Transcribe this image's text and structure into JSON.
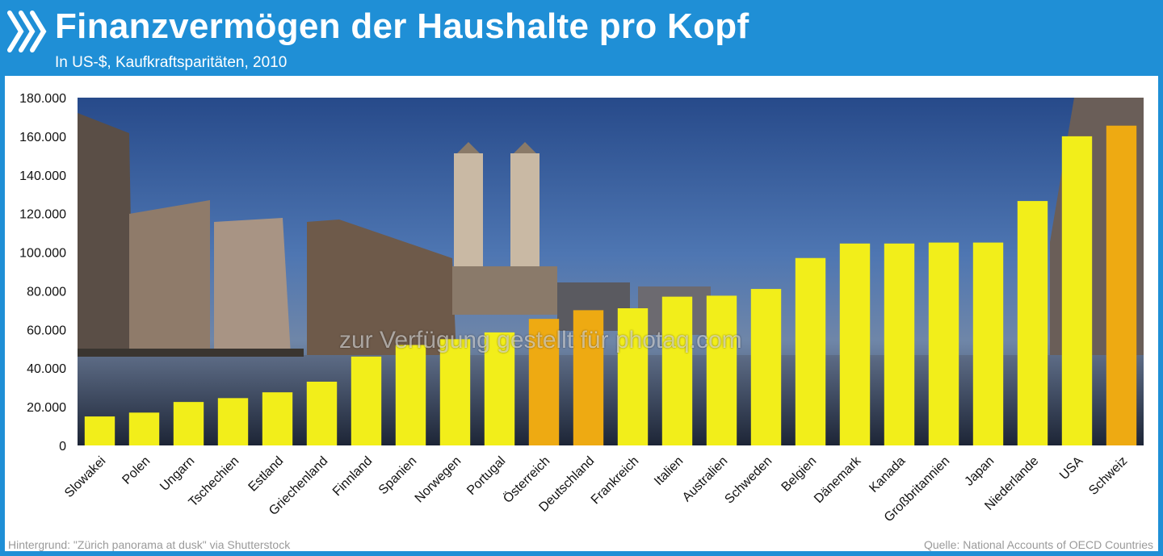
{
  "header": {
    "title": "Finanzvermögen der Haushalte pro Kopf",
    "subtitle": "In US-$, Kaufkraftsparitäten, 2010",
    "brand_color": "#1f8fd6"
  },
  "watermark": "zur Verfügung gestellt für photaq.com",
  "footer": {
    "left": "Hintergrund: \"Zürich panorama at dusk\" via Shutterstock",
    "right": "Quelle: National Accounts of OECD Countries"
  },
  "chart_data": {
    "type": "bar",
    "title": "Finanzvermögen der Haushalte pro Kopf",
    "subtitle": "In US-$, Kaufkraftsparitäten, 2010",
    "xlabel": "",
    "ylabel": "",
    "ylim": [
      0,
      180000
    ],
    "yticks": [
      0,
      20000,
      40000,
      60000,
      80000,
      100000,
      120000,
      140000,
      160000,
      180000
    ],
    "ytick_labels": [
      "0",
      "20.000",
      "40.000",
      "60.000",
      "80.000",
      "100.000",
      "120.000",
      "140.000",
      "160.000",
      "180.000"
    ],
    "grid": false,
    "categories": [
      "Slowakei",
      "Polen",
      "Ungarn",
      "Tschechien",
      "Estland",
      "Griechenland",
      "Finnland",
      "Spanien",
      "Norwegen",
      "Portugal",
      "Österreich",
      "Deutschland",
      "Frankreich",
      "Italien",
      "Australien",
      "Schweden",
      "Belgien",
      "Dänemark",
      "Kanada",
      "Großbritannien",
      "Japan",
      "Niederlande",
      "USA",
      "Schweiz"
    ],
    "values": [
      15000,
      17000,
      22500,
      24500,
      27500,
      33000,
      46000,
      52000,
      55000,
      58500,
      65500,
      70000,
      71000,
      77000,
      77500,
      81000,
      97000,
      104500,
      104500,
      105000,
      105000,
      126500,
      160000,
      165500
    ],
    "highlight": [
      "Österreich",
      "Deutschland",
      "Schweiz"
    ],
    "colors": {
      "bar": "#f2ee1a",
      "highlight": "#eeaa12",
      "background_sky": "#3a5f9c",
      "background_water": "#2c3a52"
    }
  }
}
